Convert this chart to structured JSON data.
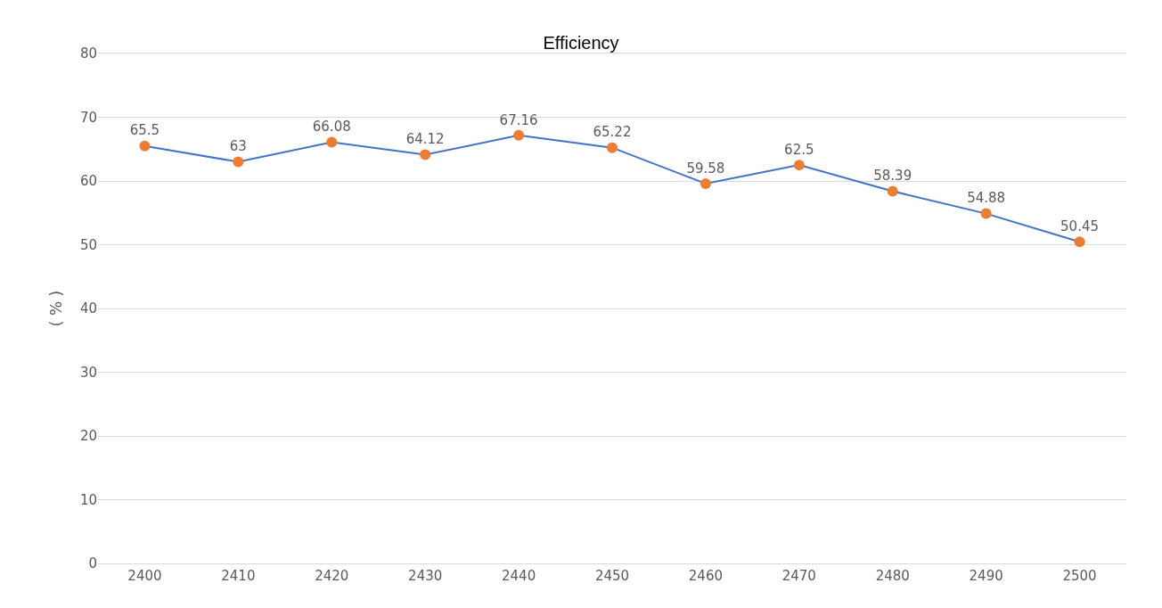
{
  "chart_data": {
    "type": "line",
    "title": "Efficiency",
    "ylabel": "( % )",
    "categories": [
      "2400",
      "2410",
      "2420",
      "2430",
      "2440",
      "2450",
      "2460",
      "2470",
      "2480",
      "2490",
      "2500"
    ],
    "series": [
      {
        "color": "#4472c4",
        "colors": [
          "#ed7d31",
          "#ed7d31",
          "#ed7d31",
          "#ed7d31",
          "#ed7d31",
          "#ed7d31",
          "#ed7d31",
          "#ed7d31",
          "#ed7d31",
          "#ed7d31",
          "#ed7d31"
        ],
        "values": [
          65.5,
          63,
          66.08,
          64.12,
          67.16,
          65.22,
          59.58,
          62.5,
          58.39,
          54.88,
          50.45
        ]
      }
    ],
    "ylim": [
      0,
      80
    ],
    "yticks": [
      0,
      10,
      20,
      30,
      40,
      50,
      60,
      70,
      80
    ],
    "grid": "y",
    "marker": "circle",
    "line_style": "solid",
    "data_labels": true
  }
}
